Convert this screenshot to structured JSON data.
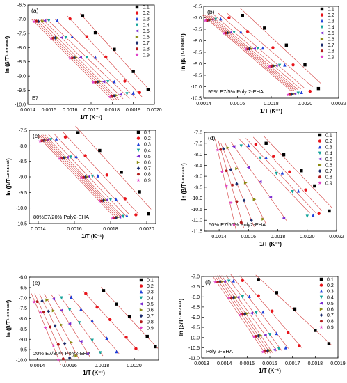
{
  "legend_labels": [
    "0.1",
    "0.2",
    "0.3",
    "0.4",
    "0.5",
    "0.6",
    "0.7",
    "0.8",
    "0.9"
  ],
  "series_colors": [
    "#000000",
    "#e8141b",
    "#1f3fd8",
    "#12a39a",
    "#7b2bd1",
    "#8a8a10",
    "#1a2a6b",
    "#b01a1a",
    "#e040c8"
  ],
  "series_markers": [
    "square",
    "circle",
    "triangle-up",
    "triangle-down",
    "triangle-left",
    "triangle-right",
    "diamond",
    "hexagon",
    "star"
  ],
  "chart_data": [
    {
      "type": "scatter",
      "panel": "(a)",
      "annotation": "E7",
      "xlabel": "1/T (K⁻¹)",
      "ylabel": "ln (β/T¹·⁸⁹⁴⁶⁶¹)",
      "xlim": [
        0.0014,
        0.002
      ],
      "ylim": [
        -10.0,
        -6.5
      ],
      "xticks": [
        "0.0014",
        "0.0015",
        "0.0016",
        "0.0017",
        "0.0018",
        "0.0019",
        "0.0020"
      ],
      "yticks": [
        "-10.0",
        "-9.5",
        "-9.0",
        "-8.5",
        "-8.0",
        "-7.5",
        "-7.0",
        "-6.5"
      ],
      "legend": "top-right",
      "series": [
        {
          "x": [
            0.00166,
            0.00172,
            0.00181,
            0.0019,
            0.00197
          ],
          "y": [
            -6.88,
            -7.48,
            -8.06,
            -8.84,
            -9.48
          ]
        },
        {
          "x": [
            0.0016,
            0.00168,
            0.00177,
            0.00186,
            0.00193
          ],
          "y": [
            -6.99,
            -7.62,
            -8.33,
            -9.18,
            -9.58
          ]
        },
        {
          "x": [
            0.00154,
            0.00161,
            0.00172,
            0.00181,
            0.0019
          ],
          "y": [
            -7.05,
            -7.62,
            -8.34,
            -9.2,
            -9.6
          ]
        },
        {
          "x": [
            0.0015,
            0.00158,
            0.00168,
            0.00178,
            0.00187
          ],
          "y": [
            -7.05,
            -7.64,
            -8.34,
            -9.2,
            -9.62
          ]
        },
        {
          "x": [
            0.00148,
            0.00156,
            0.00165,
            0.00176,
            0.00184
          ],
          "y": [
            -7.06,
            -7.65,
            -8.35,
            -9.2,
            -9.65
          ]
        },
        {
          "x": [
            0.00147,
            0.00154,
            0.00163,
            0.00174,
            0.00182
          ],
          "y": [
            -7.07,
            -7.66,
            -8.36,
            -9.2,
            -9.68
          ]
        },
        {
          "x": [
            0.00145,
            0.00153,
            0.00162,
            0.00173,
            0.00181
          ],
          "y": [
            -7.08,
            -7.66,
            -8.36,
            -9.21,
            -9.7
          ]
        },
        {
          "x": [
            0.00144,
            0.00152,
            0.00161,
            0.00172,
            0.0018
          ],
          "y": [
            -7.08,
            -7.67,
            -8.37,
            -9.21,
            -9.72
          ]
        },
        {
          "x": [
            0.00143,
            0.00151,
            0.0016,
            0.00171,
            0.00179
          ],
          "y": [
            -7.09,
            -7.67,
            -8.37,
            -9.22,
            -9.73
          ]
        }
      ]
    },
    {
      "type": "scatter",
      "panel": "(b)",
      "annotation": "95% E7/5% Poly 2-EHA",
      "xlabel": "1/T (K⁻¹)",
      "ylabel": "ln (β/T¹·⁸⁹⁴⁶⁶¹)",
      "xlim": [
        0.0014,
        0.0022
      ],
      "ylim": [
        -10.5,
        -6.5
      ],
      "xticks": [
        "0.0014",
        "0.0016",
        "0.0018",
        "0.0020",
        "0.0022"
      ],
      "yticks": [
        "-10.5",
        "-10.0",
        "-9.5",
        "-9.0",
        "-8.5",
        "-8.0",
        "-7.5",
        "-7.0",
        "-6.5"
      ],
      "legend": "top-right",
      "series": [
        {
          "x": [
            0.00163,
            0.00176,
            0.00189,
            0.002,
            0.00208
          ],
          "y": [
            -6.9,
            -7.45,
            -8.19,
            -9.05,
            -10.08
          ]
        },
        {
          "x": [
            0.00155,
            0.00166,
            0.00181,
            0.00193,
            0.00203
          ],
          "y": [
            -7.0,
            -7.6,
            -8.3,
            -9.05,
            -10.2
          ]
        },
        {
          "x": [
            0.0015,
            0.00162,
            0.00175,
            0.00188,
            0.00198
          ],
          "y": [
            -7.05,
            -7.62,
            -8.32,
            -9.06,
            -10.25
          ]
        },
        {
          "x": [
            0.00147,
            0.00158,
            0.00172,
            0.00185,
            0.00196
          ],
          "y": [
            -7.07,
            -7.63,
            -8.33,
            -9.07,
            -10.28
          ]
        },
        {
          "x": [
            0.00145,
            0.00156,
            0.0017,
            0.00183,
            0.00194
          ],
          "y": [
            -7.08,
            -7.64,
            -8.34,
            -9.08,
            -10.3
          ]
        },
        {
          "x": [
            0.00144,
            0.00155,
            0.00168,
            0.00182,
            0.00193
          ],
          "y": [
            -7.09,
            -7.65,
            -8.34,
            -9.09,
            -10.32
          ]
        },
        {
          "x": [
            0.00143,
            0.00154,
            0.00167,
            0.00181,
            0.00192
          ],
          "y": [
            -7.1,
            -7.66,
            -8.35,
            -9.1,
            -10.33
          ]
        },
        {
          "x": [
            0.00142,
            0.00153,
            0.00166,
            0.0018,
            0.00191
          ],
          "y": [
            -7.11,
            -7.67,
            -8.36,
            -9.11,
            -10.34
          ]
        },
        {
          "x": [
            0.00141,
            0.00152,
            0.00165,
            0.00179,
            0.0019
          ],
          "y": [
            -7.12,
            -7.68,
            -8.37,
            -9.12,
            -10.35
          ]
        }
      ]
    },
    {
      "type": "scatter",
      "panel": "(c)",
      "annotation": "80%E7/20% Poly2-EHA",
      "xlabel": "1/T (K⁻¹)",
      "ylabel": "ln (β/T¹·⁸⁹⁴⁶⁶¹)",
      "xlim": [
        0.00135,
        0.00205
      ],
      "ylim": [
        -10.5,
        -7.5
      ],
      "xticks": [
        "0.0014",
        "0.0016",
        "0.0018",
        "0.0020"
      ],
      "yticks": [
        "-10.5",
        "-10.0",
        "-9.5",
        "-9.0",
        "-8.5",
        "-8.0",
        "-7.5"
      ],
      "legend": "top-right",
      "series": [
        {
          "x": [
            0.00162,
            0.00174,
            0.00186,
            0.00196,
            0.00201
          ],
          "y": [
            -7.58,
            -8.15,
            -8.85,
            -9.48,
            -10.19
          ]
        },
        {
          "x": [
            0.00155,
            0.00166,
            0.00178,
            0.00188,
            0.00194
          ],
          "y": [
            -7.72,
            -8.32,
            -8.94,
            -9.7,
            -10.22
          ]
        },
        {
          "x": [
            0.0015,
            0.00161,
            0.00173,
            0.00183,
            0.00189
          ],
          "y": [
            -7.78,
            -8.35,
            -8.97,
            -9.72,
            -10.25
          ]
        },
        {
          "x": [
            0.00147,
            0.00158,
            0.0017,
            0.0018,
            0.00187
          ],
          "y": [
            -7.8,
            -8.36,
            -8.98,
            -9.73,
            -10.27
          ]
        },
        {
          "x": [
            0.00145,
            0.00156,
            0.00168,
            0.00178,
            0.00185
          ],
          "y": [
            -7.81,
            -8.37,
            -8.99,
            -9.74,
            -10.29
          ]
        },
        {
          "x": [
            0.00144,
            0.00155,
            0.00167,
            0.00177,
            0.00184
          ],
          "y": [
            -7.82,
            -8.38,
            -9.0,
            -9.75,
            -10.3
          ]
        },
        {
          "x": [
            0.00143,
            0.00154,
            0.00166,
            0.00176,
            0.00183
          ],
          "y": [
            -7.83,
            -8.39,
            -9.01,
            -9.76,
            -10.31
          ]
        },
        {
          "x": [
            0.00142,
            0.00153,
            0.00165,
            0.00175,
            0.00182
          ],
          "y": [
            -7.84,
            -8.4,
            -9.02,
            -9.77,
            -10.32
          ]
        },
        {
          "x": [
            0.00141,
            0.00152,
            0.00164,
            0.00174,
            0.00181
          ],
          "y": [
            -7.85,
            -8.41,
            -9.03,
            -9.78,
            -10.33
          ]
        }
      ]
    },
    {
      "type": "scatter",
      "panel": "(d)",
      "annotation": "50% E7/50% Poly2-EHA",
      "xlabel": "1/T (K⁻¹)",
      "ylabel": "ln (β/T¹·⁸⁹⁴⁶⁶¹)",
      "xlim": [
        0.0013,
        0.0022
      ],
      "ylim": [
        -11.5,
        -7.0
      ],
      "xticks": [
        "0.0014",
        "0.0016",
        "0.0018",
        "0.0020",
        "0.0022"
      ],
      "yticks": [
        "-11.5",
        "-11.0",
        "-10.5",
        "-10.0",
        "-9.5",
        "-9.0",
        "-8.5",
        "-8.0",
        "-7.5",
        "-7.0"
      ],
      "legend": "top-right",
      "series": [
        {
          "x": [
            0.00172,
            0.00184,
            0.00196,
            0.00205,
            0.00215
          ],
          "y": [
            -7.5,
            -8.02,
            -8.75,
            -9.44,
            -10.58
          ]
        },
        {
          "x": [
            0.00165,
            0.00177,
            0.00188,
            0.00199,
            0.00208
          ],
          "y": [
            -7.55,
            -8.1,
            -8.8,
            -9.62,
            -10.7
          ]
        },
        {
          "x": [
            0.0016,
            0.00172,
            0.00183,
            0.00194,
            0.00204
          ],
          "y": [
            -7.6,
            -8.15,
            -8.85,
            -9.67,
            -10.78
          ]
        },
        {
          "x": [
            0.00155,
            0.00168,
            0.00179,
            0.0019,
            0.002
          ],
          "y": [
            -7.62,
            -8.17,
            -8.87,
            -9.7,
            -10.82
          ]
        },
        {
          "x": [
            0.0015,
            0.0016,
            0.00168,
            0.00175,
            0.00184
          ],
          "y": [
            -7.65,
            -8.6,
            -9.25,
            -9.95,
            -10.9
          ]
        },
        {
          "x": [
            0.00146,
            0.00152,
            0.00158,
            0.00164,
            0.0017
          ],
          "y": [
            -7.7,
            -8.65,
            -9.3,
            -10.05,
            -10.95
          ]
        },
        {
          "x": [
            0.00143,
            0.00148,
            0.00152,
            0.00157,
            0.00162
          ],
          "y": [
            -7.75,
            -8.7,
            -9.35,
            -10.1,
            -11.0
          ]
        },
        {
          "x": [
            0.00141,
            0.00145,
            0.00149,
            0.00152,
            0.00155
          ],
          "y": [
            -7.78,
            -8.75,
            -9.4,
            -10.15,
            -11.1
          ]
        },
        {
          "x": [
            0.00139,
            0.00142,
            0.00145,
            0.00148,
            0.0015
          ],
          "y": [
            -7.8,
            -8.8,
            -9.45,
            -10.2,
            -11.2
          ]
        }
      ]
    },
    {
      "type": "scatter",
      "panel": "(e)",
      "annotation": "20% E7/80% Poly2-EHA",
      "xlabel": "1/T (K⁻¹)",
      "ylabel": "ln (β/T¹·⁸⁹⁴⁶⁶¹)",
      "xlim": [
        0.00135,
        0.00215
      ],
      "ylim": [
        -10.0,
        -6.0
      ],
      "xticks": [
        "0.0014",
        "0.0016",
        "0.0018",
        "0.0020"
      ],
      "yticks": [
        "-10.0",
        "-9.5",
        "-9.0",
        "-8.5",
        "-8.0",
        "-7.5",
        "-7.0",
        "-6.5",
        "-6.0"
      ],
      "legend": "top-right",
      "series": [
        {
          "x": [
            0.00181,
            0.00189,
            0.00197,
            0.00208,
            0.00213
          ],
          "y": [
            -6.65,
            -7.3,
            -7.9,
            -8.86,
            -9.36
          ]
        },
        {
          "x": [
            0.0017,
            0.00177,
            0.00185,
            0.00195,
            0.00201
          ],
          "y": [
            -6.8,
            -7.45,
            -8.05,
            -8.9,
            -9.45
          ]
        },
        {
          "x": [
            0.00161,
            0.00167,
            0.00174,
            0.00183,
            0.00189
          ],
          "y": [
            -6.97,
            -7.55,
            -8.1,
            -8.95,
            -9.6
          ]
        },
        {
          "x": [
            0.00155,
            0.0016,
            0.00166,
            0.00174,
            0.00179
          ],
          "y": [
            -7.0,
            -7.58,
            -8.2,
            -9.05,
            -9.65
          ]
        },
        {
          "x": [
            0.0015,
            0.00155,
            0.0016,
            0.00167,
            0.00171
          ],
          "y": [
            -7.05,
            -7.6,
            -8.25,
            -9.1,
            -9.7
          ]
        },
        {
          "x": [
            0.00146,
            0.0015,
            0.00155,
            0.00161,
            0.00164
          ],
          "y": [
            -7.1,
            -7.62,
            -8.3,
            -9.15,
            -9.8
          ]
        },
        {
          "x": [
            0.00143,
            0.00147,
            0.00151,
            0.00157,
            0.0016
          ],
          "y": [
            -7.15,
            -7.65,
            -8.35,
            -9.2,
            -9.9
          ]
        },
        {
          "x": [
            0.0014,
            0.00144,
            0.00148,
            0.00153,
            0.00156
          ],
          "y": [
            -7.18,
            -7.68,
            -8.4,
            -9.25,
            -9.95
          ]
        },
        {
          "x": [
            0.00138,
            0.00142,
            0.00145,
            0.0015,
            0.00153
          ],
          "y": [
            -7.2,
            -7.7,
            -8.45,
            -9.3,
            -10.0
          ]
        }
      ]
    },
    {
      "type": "scatter",
      "panel": "(f)",
      "annotation": "Poly 2-EHA",
      "xlabel": "1/T (K⁻¹)",
      "ylabel": "ln (β/T¹·⁸⁹⁴⁶⁶¹)",
      "xlim": [
        0.0013,
        0.0019
      ],
      "ylim": [
        -11.0,
        -7.0
      ],
      "xticks": [
        "0.0013",
        "0.0014",
        "0.0015",
        "0.0016",
        "0.0017",
        "0.0018",
        "0.0019"
      ],
      "yticks": [
        "-11.0",
        "-10.5",
        "-10.0",
        "-9.5",
        "-9.0",
        "-8.5",
        "-8.0",
        "-7.5",
        "-7.0"
      ],
      "legend": "top-right",
      "series": [
        {
          "x": [
            0.00155,
            0.00163,
            0.00171,
            0.0018,
            0.00186
          ],
          "y": [
            -7.15,
            -7.8,
            -8.6,
            -9.65,
            -10.3
          ]
        },
        {
          "x": [
            0.00148,
            0.00155,
            0.00161,
            0.00168,
            0.00173
          ],
          "y": [
            -7.2,
            -7.95,
            -8.7,
            -9.75,
            -10.4
          ]
        },
        {
          "x": [
            0.00144,
            0.00151,
            0.00157,
            0.00163,
            0.00167
          ],
          "y": [
            -7.22,
            -7.98,
            -8.75,
            -9.8,
            -10.5
          ]
        },
        {
          "x": [
            0.00142,
            0.00148,
            0.00154,
            0.0016,
            0.00164
          ],
          "y": [
            -7.23,
            -8.0,
            -8.78,
            -9.85,
            -10.55
          ]
        },
        {
          "x": [
            0.0014,
            0.00146,
            0.00152,
            0.00158,
            0.00162
          ],
          "y": [
            -7.24,
            -8.02,
            -8.8,
            -9.88,
            -10.6
          ]
        },
        {
          "x": [
            0.00139,
            0.00145,
            0.0015,
            0.00156,
            0.0016
          ],
          "y": [
            -7.25,
            -8.03,
            -8.82,
            -9.9,
            -10.63
          ]
        },
        {
          "x": [
            0.00138,
            0.00144,
            0.00149,
            0.00155,
            0.00159
          ],
          "y": [
            -7.26,
            -8.04,
            -8.84,
            -9.92,
            -10.65
          ]
        },
        {
          "x": [
            0.00137,
            0.00143,
            0.00148,
            0.00154,
            0.00158
          ],
          "y": [
            -7.27,
            -8.05,
            -8.86,
            -9.94,
            -10.67
          ]
        },
        {
          "x": [
            0.00136,
            0.00142,
            0.00147,
            0.00153,
            0.00157
          ],
          "y": [
            -7.28,
            -8.06,
            -8.88,
            -9.96,
            -10.7
          ]
        }
      ]
    }
  ]
}
